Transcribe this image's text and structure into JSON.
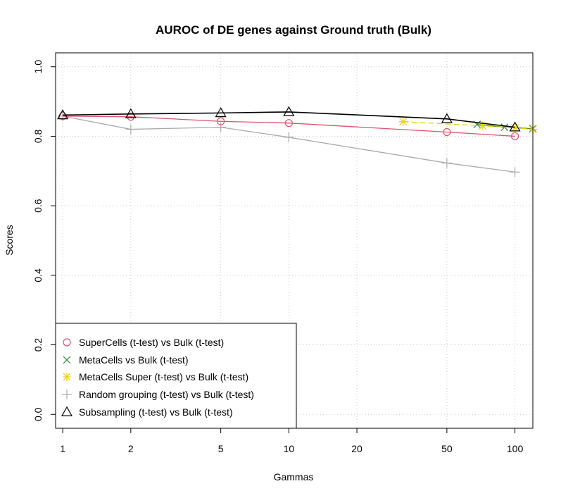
{
  "chart_data": {
    "type": "line",
    "title": "AUROC of DE genes against Ground truth (Bulk)",
    "xlabel": "Gammas",
    "ylabel": "Scores",
    "x_scale": "log",
    "xlim": [
      0.93,
      120
    ],
    "ylim": [
      -0.04,
      1.04
    ],
    "x_ticks": [
      1,
      2,
      5,
      10,
      20,
      50,
      100
    ],
    "x_tick_labels": [
      "1",
      "2",
      "5",
      "10",
      "20",
      "50",
      "100"
    ],
    "y_ticks": [
      0.0,
      0.2,
      0.4,
      0.6,
      0.8,
      1.0
    ],
    "y_tick_labels": [
      "0.0",
      "0.2",
      "0.4",
      "0.6",
      "0.8",
      "1.0"
    ],
    "grid": true,
    "legend_position": "bottom-left",
    "series": [
      {
        "name": "SuperCells (t-test) vs Bulk (t-test)",
        "color": "#DF536B",
        "marker": "circle",
        "x": [
          1,
          2,
          5,
          10,
          50,
          100
        ],
        "y": [
          0.858,
          0.856,
          0.843,
          0.838,
          0.812,
          0.8
        ]
      },
      {
        "name": "MetaCells vs Bulk (t-test)",
        "color": "#228B22",
        "marker": "x",
        "x": [
          68,
          90,
          120
        ],
        "y": [
          0.834,
          0.826,
          0.822
        ]
      },
      {
        "name": "MetaCells Super (t-test) vs Bulk (t-test)",
        "color": "#E8D100",
        "marker": "asterisk",
        "x": [
          32,
          72,
          100,
          120
        ],
        "y": [
          0.842,
          0.83,
          0.824,
          0.82
        ]
      },
      {
        "name": "Random grouping (t-test) vs Bulk (t-test)",
        "color": "#AAAAAA",
        "marker": "plus",
        "x": [
          1,
          2,
          5,
          10,
          50,
          100
        ],
        "y": [
          0.858,
          0.82,
          0.826,
          0.797,
          0.723,
          0.697
        ]
      },
      {
        "name": "Subsampling (t-test) vs Bulk (t-test)",
        "color": "#000000",
        "marker": "triangle",
        "x": [
          1,
          2,
          5,
          10,
          50,
          100
        ],
        "y": [
          0.861,
          0.864,
          0.867,
          0.87,
          0.85,
          0.826
        ]
      }
    ]
  }
}
